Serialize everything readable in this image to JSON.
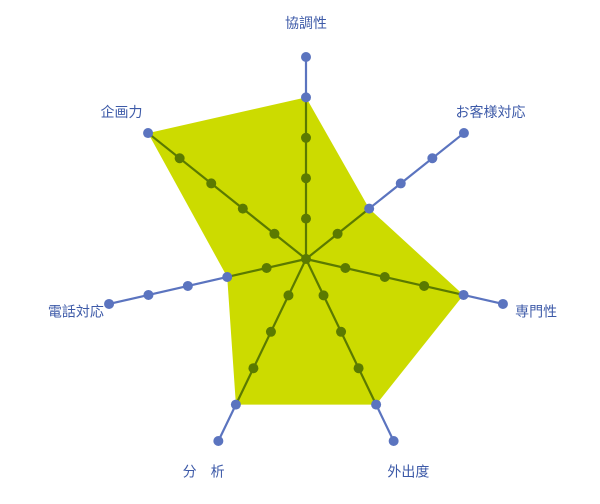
{
  "chart_data": {
    "type": "radar",
    "categories": [
      "協調性",
      "お客様対応",
      "専門性",
      "外出度",
      "分　析",
      "電話対応",
      "企画力"
    ],
    "values": [
      4,
      2,
      4,
      4,
      4,
      2,
      5
    ],
    "rlim": [
      0,
      5
    ],
    "levels": [
      1,
      2,
      3,
      4,
      5
    ],
    "colors": {
      "axis": "#5b74bf",
      "fill": "#ccdb00",
      "inner": "#5b7a00",
      "label": "#3d5aa8"
    }
  }
}
